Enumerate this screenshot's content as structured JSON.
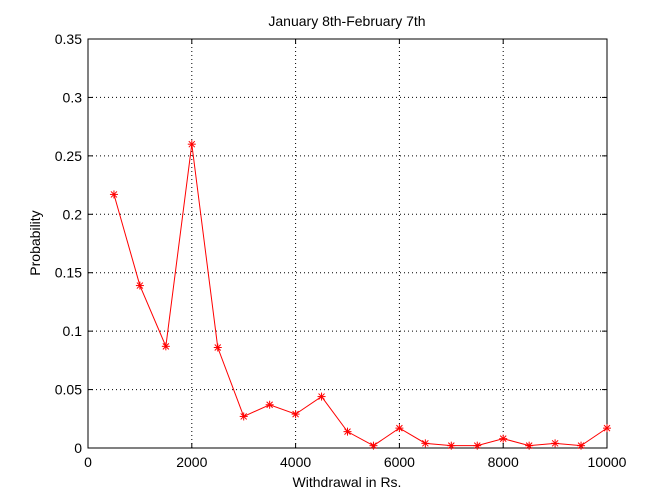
{
  "chart_data": {
    "type": "line",
    "title": "January 8th-February 7th",
    "xlabel": "Withdrawal in Rs.",
    "ylabel": "Probability",
    "xlim": [
      0,
      10000
    ],
    "ylim": [
      0,
      0.35
    ],
    "xticks": [
      0,
      2000,
      4000,
      6000,
      8000,
      10000
    ],
    "yticks": [
      0,
      0.05,
      0.1,
      0.15,
      0.2,
      0.25,
      0.3,
      0.35
    ],
    "grid": true,
    "series": [
      {
        "color": "#ff0000",
        "marker": "asterisk",
        "points": [
          {
            "x": 500,
            "y": 0.217
          },
          {
            "x": 1000,
            "y": 0.139
          },
          {
            "x": 1500,
            "y": 0.087
          },
          {
            "x": 2000,
            "y": 0.26
          },
          {
            "x": 2500,
            "y": 0.086
          },
          {
            "x": 3000,
            "y": 0.027
          },
          {
            "x": 3500,
            "y": 0.037
          },
          {
            "x": 4000,
            "y": 0.029
          },
          {
            "x": 4500,
            "y": 0.044
          },
          {
            "x": 5000,
            "y": 0.014
          },
          {
            "x": 5500,
            "y": 0.002
          },
          {
            "x": 6000,
            "y": 0.017
          },
          {
            "x": 6500,
            "y": 0.004
          },
          {
            "x": 7000,
            "y": 0.002
          },
          {
            "x": 7500,
            "y": 0.002
          },
          {
            "x": 8000,
            "y": 0.008
          },
          {
            "x": 8500,
            "y": 0.002
          },
          {
            "x": 9000,
            "y": 0.004
          },
          {
            "x": 9500,
            "y": 0.002
          },
          {
            "x": 10000,
            "y": 0.017
          }
        ]
      }
    ]
  }
}
